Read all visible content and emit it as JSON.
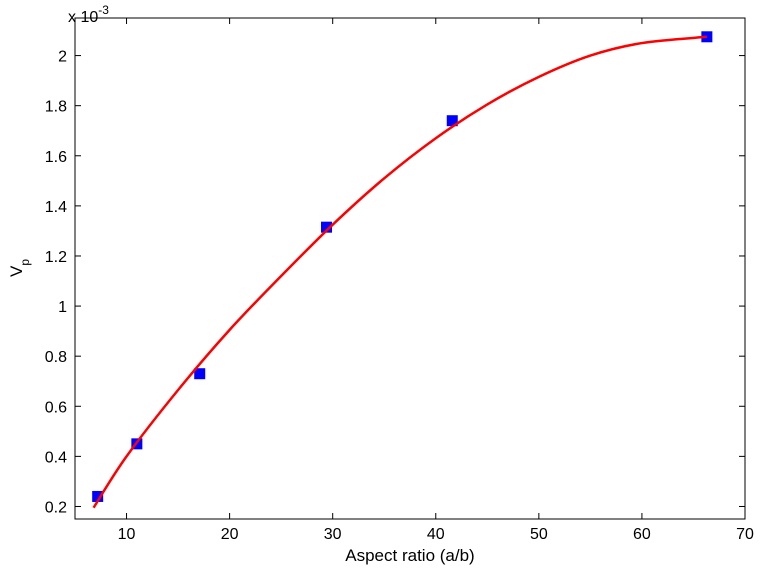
{
  "chart_data": {
    "type": "scatter",
    "xlabel": "Aspect ratio (a/b)",
    "ylabel": "V",
    "ylabel_subscript": "p",
    "y_multiplier_base": "x 10",
    "y_multiplier_exp": "-3",
    "xlim": [
      5,
      70
    ],
    "ylim": [
      0.15,
      2.15
    ],
    "xticks": [
      10,
      20,
      30,
      40,
      50,
      60,
      70
    ],
    "yticks": [
      0.2,
      0.4,
      0.6,
      0.8,
      1,
      1.2,
      1.4,
      1.6,
      1.8,
      2
    ],
    "grid": false,
    "series": [
      {
        "kind": "markers",
        "color": "#0000ff",
        "marker": "square",
        "x": [
          7.2,
          11.0,
          17.1,
          29.4,
          41.6,
          66.3
        ],
        "y": [
          0.24,
          0.45,
          0.73,
          1.315,
          1.74,
          2.075
        ]
      },
      {
        "kind": "fit-line",
        "color": "#ff0000",
        "x": [
          6.8,
          10,
          15,
          20,
          25,
          30,
          35,
          40,
          45,
          50,
          55,
          60,
          66.3
        ],
        "y": [
          0.195,
          0.4,
          0.665,
          0.905,
          1.12,
          1.325,
          1.51,
          1.67,
          1.805,
          1.915,
          2.0,
          2.05,
          2.075
        ]
      }
    ]
  }
}
